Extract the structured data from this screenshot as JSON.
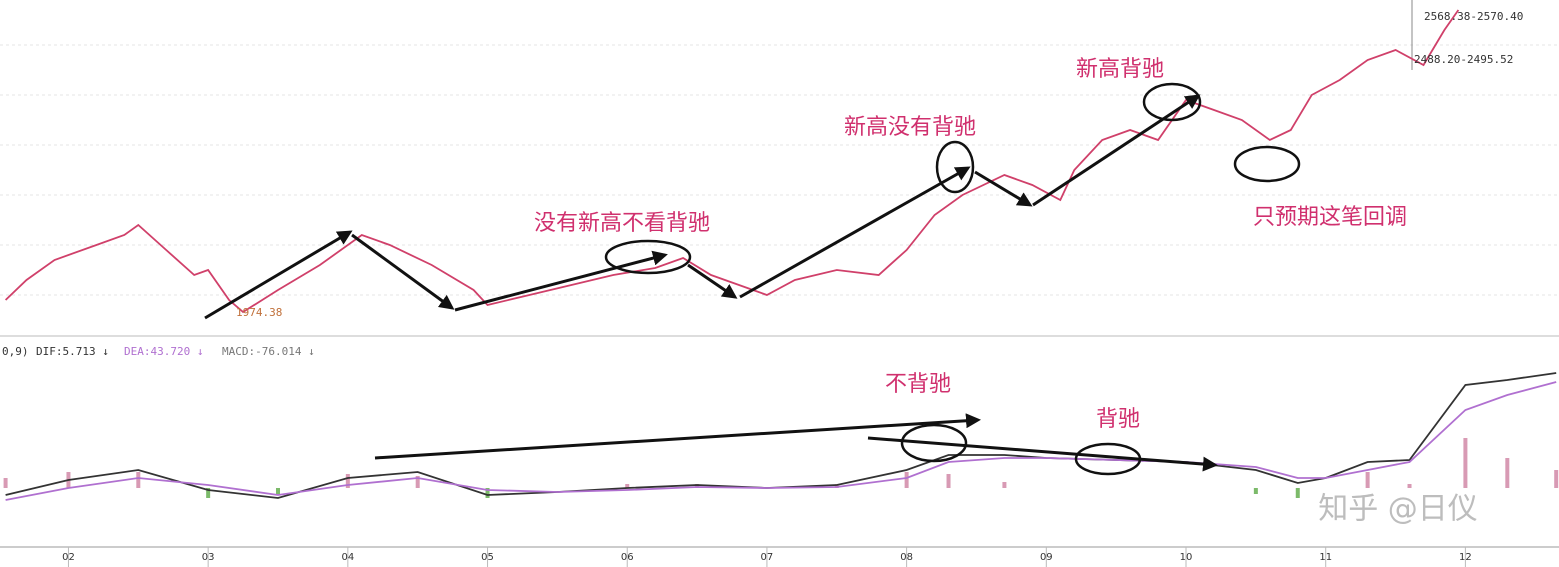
{
  "chart_data": [
    {
      "type": "line",
      "annotations": [
        "没有新高不看背驰",
        "新高没有背驰",
        "新高背驰",
        "只预期这笔回调"
      ],
      "price_labels": [
        "2568.38-2570.40",
        "2488.20-2495.52",
        "1974.38"
      ],
      "xlim": [
        1.51,
        12.67
      ],
      "ylim": [
        1938,
        2598
      ],
      "series": [
        {
          "name": "price",
          "color": "#d0406a",
          "x": [
            1.55,
            1.7,
            1.9,
            2.2,
            2.4,
            2.5,
            2.7,
            2.9,
            3.0,
            3.15,
            3.25,
            3.5,
            3.8,
            4.1,
            4.3,
            4.6,
            4.9,
            5.0,
            5.3,
            5.6,
            5.9,
            6.2,
            6.4,
            6.6,
            6.9,
            7.0,
            7.2,
            7.5,
            7.8,
            8.0,
            8.2,
            8.4,
            8.7,
            8.9,
            9.1,
            9.2,
            9.4,
            9.6,
            9.8,
            10.0,
            10.2,
            10.4,
            10.6,
            10.75,
            10.9,
            11.1,
            11.3,
            11.5,
            11.7,
            11.85,
            11.95
          ],
          "values": [
            1998,
            2038,
            2078,
            2108,
            2128,
            2148,
            2098,
            2048,
            2058,
            1998,
            1974,
            2018,
            2068,
            2128,
            2108,
            2068,
            2018,
            1988,
            2008,
            2028,
            2048,
            2062,
            2082,
            2048,
            2018,
            2008,
            2038,
            2058,
            2048,
            2098,
            2168,
            2208,
            2248,
            2228,
            2198,
            2258,
            2318,
            2338,
            2318,
            2398,
            2378,
            2358,
            2318,
            2338,
            2408,
            2438,
            2478,
            2498,
            2468,
            2538,
            2578
          ]
        }
      ]
    },
    {
      "type": "line",
      "legend_prefix": "0,9)",
      "legend": [
        "DIF:5.713 ↓",
        "DEA:43.720 ↓",
        "MACD:-76.014 ↓"
      ],
      "annotations": [
        "不背驰",
        "背驰"
      ],
      "watermark": "知乎 @日仪",
      "xlim": [
        1.51,
        12.67
      ],
      "ylim": [
        -57,
        143
      ],
      "xticks": [
        {
          "value": 2,
          "label": "02"
        },
        {
          "value": 3,
          "label": "03"
        },
        {
          "value": 4,
          "label": "04"
        },
        {
          "value": 5,
          "label": "05"
        },
        {
          "value": 6,
          "label": "06"
        },
        {
          "value": 7,
          "label": "07"
        },
        {
          "value": 8,
          "label": "08"
        },
        {
          "value": 9,
          "label": "09"
        },
        {
          "value": 10,
          "label": "10"
        },
        {
          "value": 11,
          "label": "11"
        },
        {
          "value": 12,
          "label": "12"
        }
      ],
      "x": [
        1.55,
        2,
        2.5,
        3,
        3.5,
        4,
        4.5,
        5,
        5.5,
        6,
        6.5,
        7,
        7.5,
        8,
        8.3,
        8.7,
        9,
        9.5,
        10,
        10.5,
        10.8,
        11,
        11.3,
        11.6,
        12,
        12.3,
        12.65
      ],
      "series": [
        {
          "name": "MACD",
          "style": "bar",
          "color": "#d89ab4",
          "negative_color": "#7cba6a",
          "values": [
            10,
            16,
            16,
            -10,
            -6,
            14,
            12,
            -10,
            0,
            4,
            4,
            0,
            4,
            16,
            14,
            6,
            0,
            0,
            0,
            -6,
            -10,
            0,
            16,
            4,
            50,
            30,
            18
          ]
        },
        {
          "name": "DIF",
          "color": "#333333",
          "values": [
            -7,
            8,
            18,
            -2,
            -10,
            10,
            16,
            -7,
            -4,
            0,
            3,
            0,
            3,
            18,
            33,
            33,
            30,
            28,
            26,
            18,
            5,
            10,
            26,
            28,
            103,
            108,
            115
          ]
        },
        {
          "name": "DEA",
          "color": "#b070d0",
          "values": [
            -12,
            0,
            10,
            3,
            -7,
            3,
            10,
            -2,
            -4,
            -2,
            1,
            0,
            1,
            10,
            26,
            30,
            30,
            28,
            26,
            21,
            10,
            10,
            18,
            26,
            78,
            93,
            106
          ]
        }
      ]
    }
  ]
}
